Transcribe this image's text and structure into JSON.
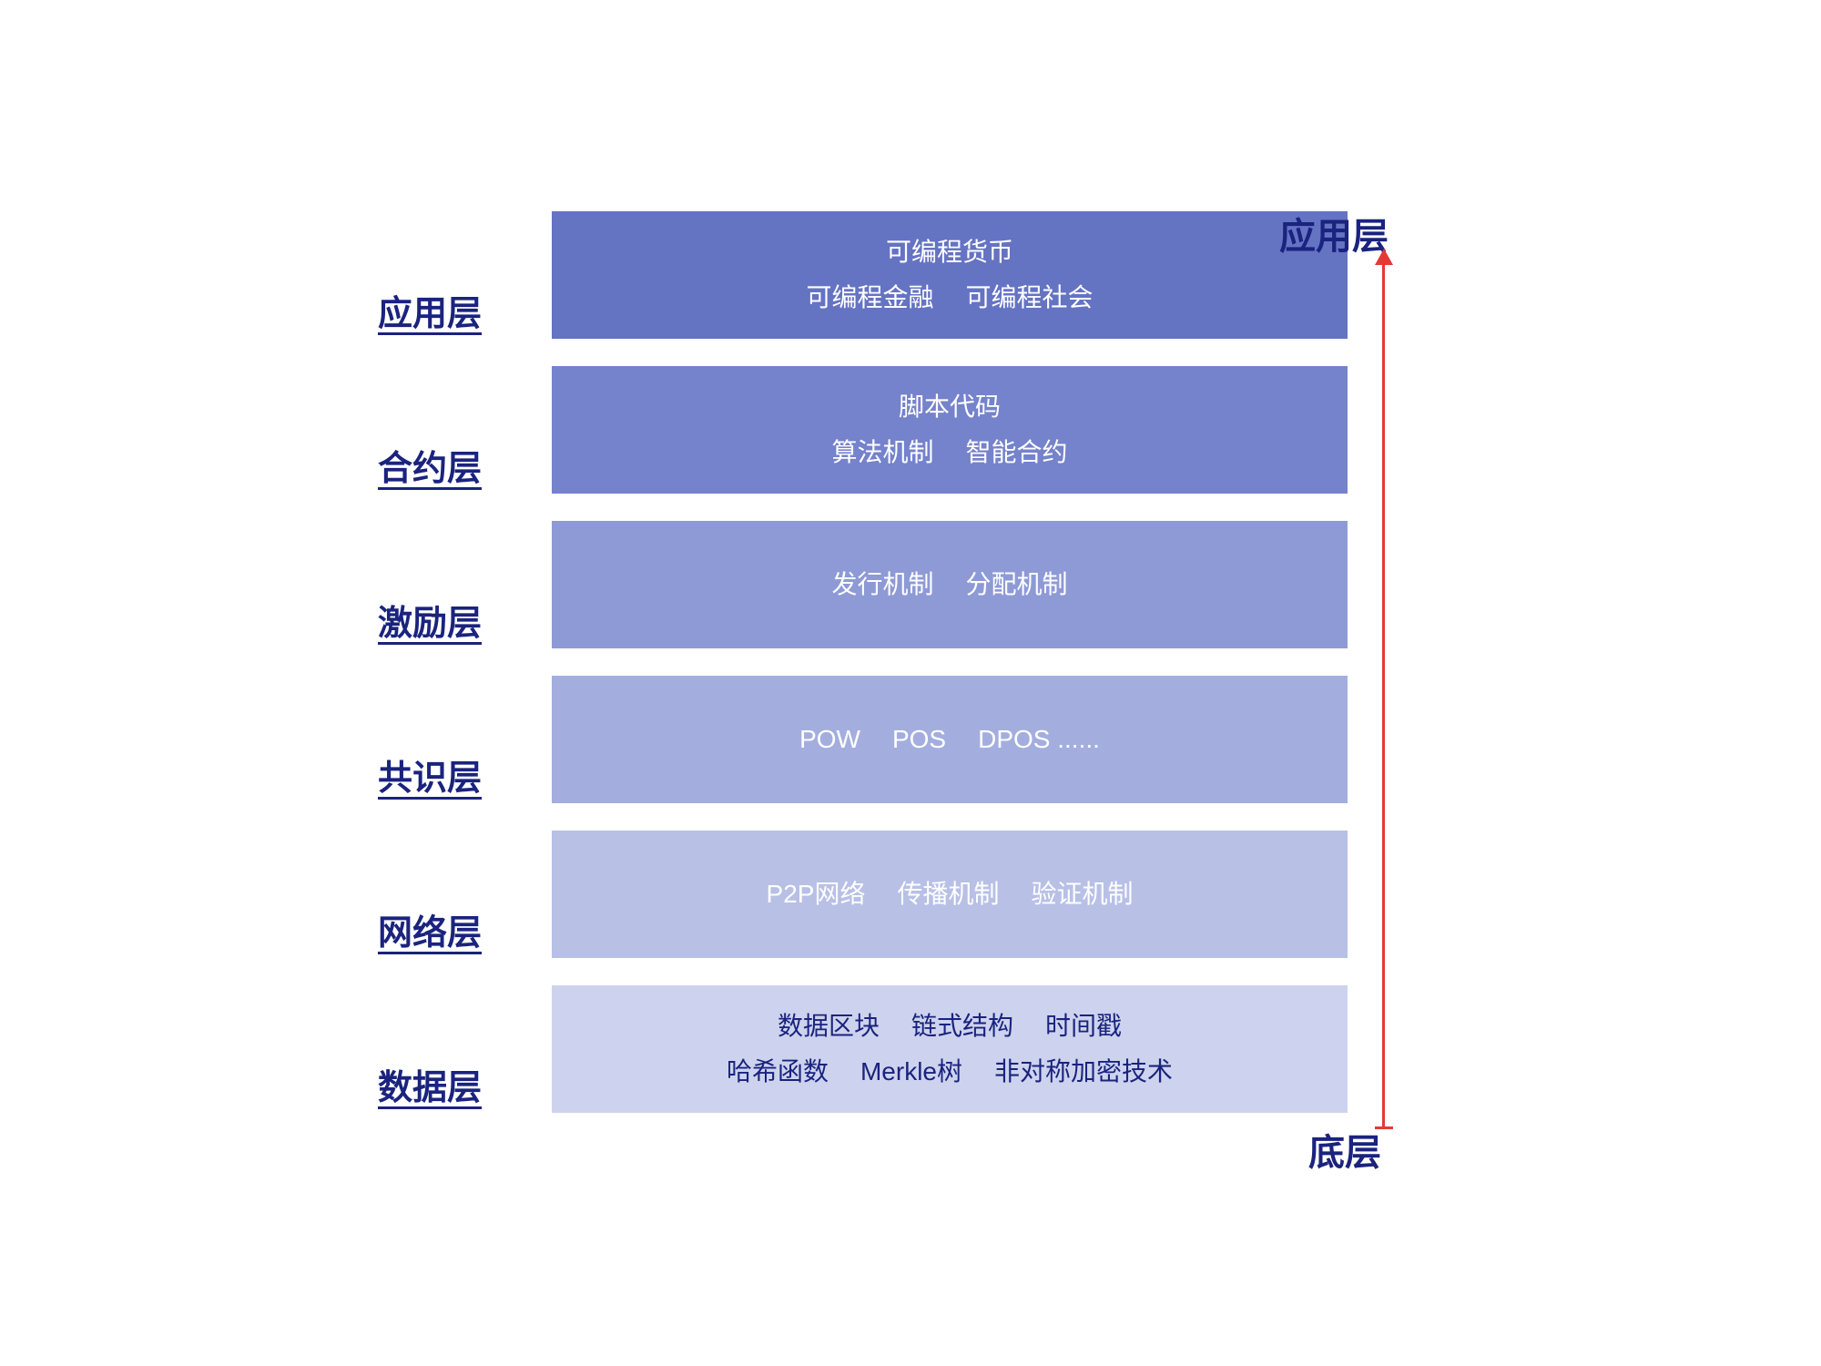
{
  "diagram": {
    "type": "layered-stack",
    "layers": [
      {
        "label": "应用层",
        "bg_color": "#6573c3",
        "text_color": "#ffffff",
        "lines": [
          [
            "可编程货币"
          ],
          [
            "可编程金融",
            "可编程社会"
          ]
        ]
      },
      {
        "label": "合约层",
        "bg_color": "#7582cc",
        "text_color": "#ffffff",
        "lines": [
          [
            "脚本代码"
          ],
          [
            "算法机制",
            "智能合约"
          ]
        ]
      },
      {
        "label": "激励层",
        "bg_color": "#8e9ad6",
        "text_color": "#ffffff",
        "lines": [
          [
            "发行机制",
            "分配机制"
          ]
        ]
      },
      {
        "label": "共识层",
        "bg_color": "#a4aede",
        "text_color": "#ffffff",
        "lines": [
          [
            "POW",
            "POS",
            "DPOS ......"
          ]
        ]
      },
      {
        "label": "网络层",
        "bg_color": "#b8c0e6",
        "text_color": "#ffffff",
        "lines": [
          [
            "P2P网络",
            "传播机制",
            "验证机制"
          ]
        ]
      },
      {
        "label": "数据层",
        "bg_color": "#cdd3ee",
        "text_color": "#1a237e",
        "lines": [
          [
            "数据区块",
            "链式结构",
            "时间戳"
          ],
          [
            "哈希函数",
            "Merkle树",
            "非对称加密技术"
          ]
        ]
      }
    ],
    "arrow": {
      "top_label": "应用层",
      "bottom_label": "底层",
      "color": "#e53935"
    },
    "label_color": "#1a237e",
    "label_fontsize": 38,
    "content_fontsize": 28,
    "background_color": "#ffffff"
  }
}
